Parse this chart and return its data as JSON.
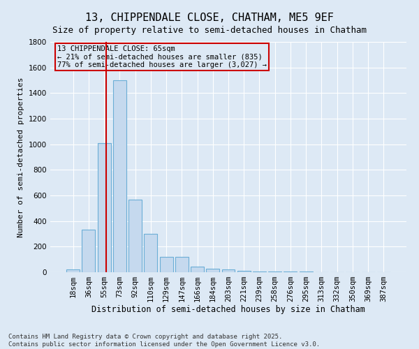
{
  "title": "13, CHIPPENDALE CLOSE, CHATHAM, ME5 9EF",
  "subtitle": "Size of property relative to semi-detached houses in Chatham",
  "xlabel": "Distribution of semi-detached houses by size in Chatham",
  "ylabel": "Number of semi-detached properties",
  "categories": [
    "18sqm",
    "36sqm",
    "55sqm",
    "73sqm",
    "92sqm",
    "110sqm",
    "129sqm",
    "147sqm",
    "166sqm",
    "184sqm",
    "203sqm",
    "221sqm",
    "239sqm",
    "258sqm",
    "276sqm",
    "295sqm",
    "313sqm",
    "332sqm",
    "350sqm",
    "369sqm",
    "387sqm"
  ],
  "values": [
    20,
    335,
    1010,
    1500,
    565,
    300,
    120,
    120,
    45,
    25,
    20,
    10,
    5,
    5,
    5,
    5,
    0,
    0,
    0,
    0,
    0
  ],
  "bar_color": "#c5d9ee",
  "bar_edge_color": "#6baed6",
  "vline_x_index": 2.15,
  "vline_color": "#cc0000",
  "annotation_text": "13 CHIPPENDALE CLOSE: 65sqm\n← 21% of semi-detached houses are smaller (835)\n77% of semi-detached houses are larger (3,027) →",
  "annotation_box_color": "#cc0000",
  "ylim": [
    0,
    1800
  ],
  "yticks": [
    0,
    200,
    400,
    600,
    800,
    1000,
    1200,
    1400,
    1600,
    1800
  ],
  "bg_color": "#dde9f5",
  "grid_color": "#ffffff",
  "footer": "Contains HM Land Registry data © Crown copyright and database right 2025.\nContains public sector information licensed under the Open Government Licence v3.0.",
  "title_fontsize": 11,
  "subtitle_fontsize": 9,
  "xlabel_fontsize": 8.5,
  "ylabel_fontsize": 8,
  "tick_fontsize": 7.5,
  "annot_fontsize": 7.5,
  "footer_fontsize": 6.5
}
